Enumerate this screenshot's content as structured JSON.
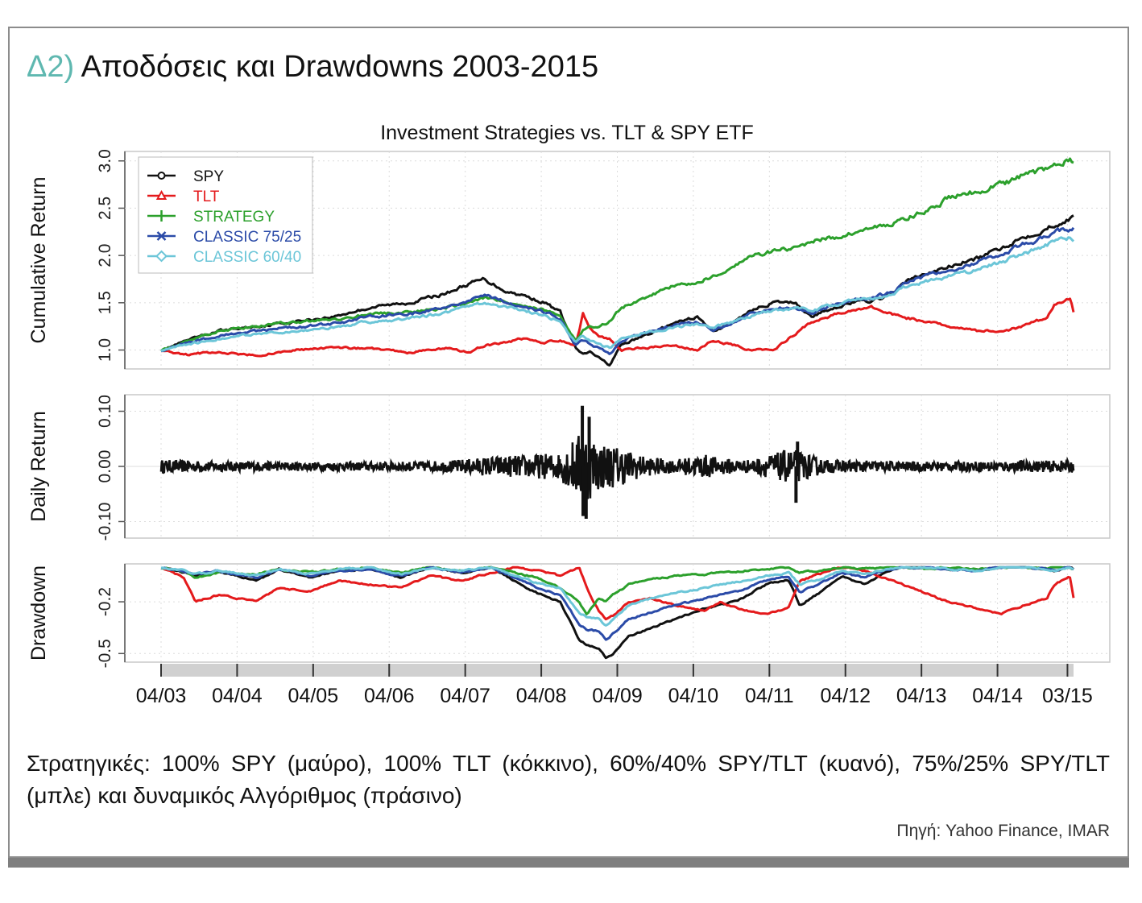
{
  "heading": {
    "number": "Δ2)",
    "text": "Αποδόσεις και Drawdowns 2003-2015"
  },
  "caption": "Στρατηγικές: 100% SPY (μαύρο), 100% TLT (κόκκινο), 60%/40% SPY/TLT (κυανό), 75%/25% SPY/TLT (μπλε) και δυναμικός Αλγόριθμος (πράσινο)",
  "source": "Πηγή: Yahoo Finance, IMAR",
  "chart_data": {
    "type": "line",
    "title": "Investment Strategies vs. TLT & SPY ETF",
    "x_tick_labels": [
      "04/03",
      "04/04",
      "04/05",
      "04/06",
      "04/07",
      "04/08",
      "04/09",
      "04/10",
      "04/11",
      "04/12",
      "04/13",
      "04/14",
      "03/15"
    ],
    "x_range": [
      2003.25,
      2015.25
    ],
    "legend": {
      "placement": "top-left",
      "entries": [
        {
          "name": "SPY",
          "color": "#111111",
          "marker": "circle"
        },
        {
          "name": "TLT",
          "color": "#e41a1c",
          "marker": "triangle"
        },
        {
          "name": "STRATEGY",
          "color": "#2ca02c",
          "marker": "plus"
        },
        {
          "name": "CLASSIC 75/25",
          "color": "#2b4ba8",
          "marker": "cross"
        },
        {
          "name": "CLASSIC 60/40",
          "color": "#6cc6d8",
          "marker": "diamond"
        }
      ]
    },
    "panels": [
      {
        "name": "cumulative",
        "ylabel": "Cumulative Return",
        "ylim": [
          0.8,
          3.1
        ],
        "yticks": [
          "1.0",
          "1.5",
          "2.0",
          "2.5",
          "3.0"
        ],
        "grid": true,
        "x": [
          2003.25,
          2003.6,
          2004.0,
          2004.5,
          2005.0,
          2005.5,
          2006.0,
          2006.5,
          2007.0,
          2007.3,
          2007.5,
          2007.8,
          2008.0,
          2008.3,
          2008.5,
          2008.7,
          2008.8,
          2008.9,
          2009.0,
          2009.15,
          2009.3,
          2009.6,
          2010.0,
          2010.3,
          2010.5,
          2010.8,
          2011.0,
          2011.3,
          2011.6,
          2011.8,
          2012.0,
          2012.3,
          2012.6,
          2012.9,
          2013.0,
          2013.3,
          2013.6,
          2014.0,
          2014.3,
          2014.6,
          2014.9,
          2015.0,
          2015.2,
          2015.25
        ],
        "series": [
          {
            "name": "SPY",
            "color": "#111111",
            "values": [
              1.0,
              1.1,
              1.2,
              1.25,
              1.3,
              1.35,
              1.45,
              1.5,
              1.6,
              1.7,
              1.75,
              1.62,
              1.58,
              1.5,
              1.4,
              1.02,
              0.95,
              0.98,
              0.92,
              0.84,
              1.05,
              1.15,
              1.28,
              1.35,
              1.2,
              1.3,
              1.42,
              1.5,
              1.5,
              1.35,
              1.42,
              1.5,
              1.52,
              1.6,
              1.72,
              1.8,
              1.88,
              1.97,
              2.08,
              2.2,
              2.28,
              2.33,
              2.38,
              2.4
            ]
          },
          {
            "name": "TLT",
            "color": "#e41a1c",
            "values": [
              1.0,
              0.95,
              0.98,
              0.94,
              1.0,
              1.02,
              1.02,
              0.97,
              1.02,
              0.97,
              1.05,
              1.08,
              1.12,
              1.08,
              1.1,
              1.05,
              1.38,
              1.22,
              1.15,
              1.12,
              1.0,
              1.02,
              1.05,
              1.0,
              1.1,
              1.05,
              1.0,
              1.0,
              1.18,
              1.3,
              1.35,
              1.42,
              1.45,
              1.38,
              1.35,
              1.3,
              1.25,
              1.2,
              1.2,
              1.25,
              1.35,
              1.48,
              1.55,
              1.4
            ]
          },
          {
            "name": "STRATEGY",
            "color": "#2ca02c",
            "values": [
              1.0,
              1.1,
              1.2,
              1.25,
              1.3,
              1.32,
              1.38,
              1.4,
              1.45,
              1.5,
              1.55,
              1.5,
              1.48,
              1.42,
              1.35,
              1.1,
              1.2,
              1.25,
              1.25,
              1.3,
              1.45,
              1.55,
              1.68,
              1.72,
              1.78,
              1.9,
              1.98,
              2.05,
              2.08,
              2.15,
              2.18,
              2.22,
              2.3,
              2.35,
              2.38,
              2.48,
              2.6,
              2.68,
              2.75,
              2.85,
              2.92,
              2.97,
              3.03,
              2.99
            ]
          },
          {
            "name": "CLASSIC 75/25",
            "color": "#2b4ba8",
            "values": [
              1.0,
              1.08,
              1.15,
              1.2,
              1.24,
              1.28,
              1.35,
              1.38,
              1.45,
              1.52,
              1.58,
              1.5,
              1.46,
              1.4,
              1.33,
              1.05,
              1.1,
              1.06,
              1.02,
              0.96,
              1.1,
              1.18,
              1.26,
              1.3,
              1.22,
              1.3,
              1.38,
              1.44,
              1.45,
              1.38,
              1.45,
              1.52,
              1.55,
              1.62,
              1.7,
              1.78,
              1.85,
              1.93,
              2.02,
              2.12,
              2.2,
              2.25,
              2.28,
              2.28
            ]
          },
          {
            "name": "CLASSIC 60/40",
            "color": "#6cc6d8",
            "values": [
              1.0,
              1.06,
              1.12,
              1.17,
              1.2,
              1.24,
              1.3,
              1.33,
              1.4,
              1.45,
              1.5,
              1.45,
              1.42,
              1.36,
              1.3,
              1.08,
              1.15,
              1.1,
              1.06,
              1.02,
              1.12,
              1.18,
              1.24,
              1.28,
              1.24,
              1.3,
              1.36,
              1.42,
              1.45,
              1.4,
              1.46,
              1.52,
              1.55,
              1.6,
              1.66,
              1.72,
              1.78,
              1.85,
              1.93,
              2.02,
              2.1,
              2.15,
              2.18,
              2.15
            ]
          }
        ]
      },
      {
        "name": "daily",
        "ylabel": "Daily Return",
        "ylim": [
          -0.13,
          0.13
        ],
        "yticks": [
          "-0.10",
          "0.00",
          "0.10"
        ],
        "grid": true,
        "series_name": "SPY",
        "color": "#111111",
        "volatility_x": [
          2003.25,
          2004.0,
          2005.0,
          2006.0,
          2007.0,
          2007.6,
          2008.0,
          2008.5,
          2008.75,
          2008.85,
          2009.0,
          2009.3,
          2009.6,
          2010.0,
          2010.4,
          2010.6,
          2011.0,
          2011.55,
          2011.8,
          2012.0,
          2013.0,
          2014.0,
          2015.25
        ],
        "volatility_y": [
          0.012,
          0.009,
          0.008,
          0.008,
          0.01,
          0.018,
          0.02,
          0.025,
          0.06,
          0.065,
          0.045,
          0.035,
          0.018,
          0.012,
          0.022,
          0.015,
          0.012,
          0.032,
          0.02,
          0.012,
          0.009,
          0.009,
          0.011
        ],
        "extremes": [
          {
            "x": 2008.79,
            "y": 0.11
          },
          {
            "x": 2008.84,
            "y": -0.095
          },
          {
            "x": 2008.8,
            "y": -0.09
          },
          {
            "x": 2008.88,
            "y": 0.09
          },
          {
            "x": 2011.6,
            "y": -0.066
          },
          {
            "x": 2011.62,
            "y": 0.045
          }
        ]
      },
      {
        "name": "drawdown",
        "ylabel": "Drawdown",
        "ylim": [
          -0.55,
          0.02
        ],
        "yticks": [
          "-0.5",
          "-0.2"
        ],
        "grid": true,
        "x": [
          2003.25,
          2003.55,
          2003.7,
          2004.0,
          2004.5,
          2004.8,
          2005.2,
          2005.6,
          2006.0,
          2006.4,
          2006.8,
          2007.2,
          2007.6,
          2007.9,
          2008.2,
          2008.5,
          2008.75,
          2008.85,
          2009.0,
          2009.1,
          2009.2,
          2009.4,
          2009.7,
          2010.0,
          2010.4,
          2010.6,
          2010.9,
          2011.2,
          2011.5,
          2011.65,
          2011.9,
          2012.2,
          2012.5,
          2012.8,
          2013.0,
          2013.3,
          2013.6,
          2014.0,
          2014.3,
          2014.6,
          2014.9,
          2015.0,
          2015.2,
          2015.25
        ],
        "series": [
          {
            "name": "SPY",
            "color": "#111111",
            "values": [
              0,
              -0.03,
              -0.05,
              -0.02,
              -0.08,
              -0.01,
              -0.06,
              -0.02,
              -0.01,
              -0.06,
              0,
              -0.03,
              0,
              -0.08,
              -0.15,
              -0.2,
              -0.42,
              -0.45,
              -0.47,
              -0.52,
              -0.5,
              -0.4,
              -0.35,
              -0.3,
              -0.24,
              -0.22,
              -0.18,
              -0.1,
              -0.07,
              -0.22,
              -0.15,
              -0.05,
              -0.1,
              -0.02,
              0,
              0,
              -0.01,
              -0.02,
              0,
              0,
              -0.01,
              -0.02,
              0,
              -0.01
            ]
          },
          {
            "name": "TLT",
            "color": "#e41a1c",
            "values": [
              0,
              -0.06,
              -0.2,
              -0.16,
              -0.2,
              -0.12,
              -0.14,
              -0.08,
              -0.1,
              -0.12,
              -0.05,
              -0.08,
              -0.03,
              0,
              -0.02,
              -0.05,
              0,
              -0.12,
              -0.25,
              -0.3,
              -0.28,
              -0.2,
              -0.18,
              -0.22,
              -0.25,
              -0.2,
              -0.25,
              -0.27,
              -0.24,
              -0.08,
              -0.04,
              0,
              -0.02,
              -0.07,
              -0.1,
              -0.15,
              -0.2,
              -0.24,
              -0.27,
              -0.22,
              -0.18,
              -0.1,
              -0.05,
              -0.18
            ]
          },
          {
            "name": "STRATEGY",
            "color": "#2ca02c",
            "values": [
              0,
              -0.02,
              -0.06,
              -0.03,
              -0.04,
              -0.01,
              -0.03,
              -0.01,
              0,
              -0.03,
              0,
              -0.02,
              0,
              -0.03,
              -0.06,
              -0.12,
              -0.2,
              -0.28,
              -0.18,
              -0.2,
              -0.16,
              -0.1,
              -0.07,
              -0.05,
              -0.04,
              -0.03,
              -0.02,
              -0.01,
              0,
              -0.03,
              -0.02,
              0,
              -0.01,
              0,
              0,
              -0.01,
              0,
              -0.01,
              0,
              0,
              -0.01,
              0,
              0,
              -0.01
            ]
          },
          {
            "name": "CLASSIC 75/25",
            "color": "#2b4ba8",
            "values": [
              0,
              -0.02,
              -0.04,
              -0.02,
              -0.06,
              -0.01,
              -0.05,
              -0.02,
              -0.01,
              -0.05,
              0,
              -0.03,
              0,
              -0.06,
              -0.12,
              -0.16,
              -0.33,
              -0.36,
              -0.37,
              -0.42,
              -0.38,
              -0.3,
              -0.26,
              -0.22,
              -0.18,
              -0.16,
              -0.13,
              -0.08,
              -0.05,
              -0.14,
              -0.1,
              -0.03,
              -0.06,
              -0.01,
              0,
              0,
              -0.01,
              -0.02,
              0,
              0,
              -0.01,
              -0.02,
              0,
              -0.01
            ]
          },
          {
            "name": "CLASSIC 60/40",
            "color": "#6cc6d8",
            "values": [
              0,
              -0.02,
              -0.04,
              -0.02,
              -0.05,
              -0.01,
              -0.04,
              -0.01,
              0,
              -0.04,
              0,
              -0.02,
              0,
              -0.05,
              -0.09,
              -0.12,
              -0.26,
              -0.29,
              -0.3,
              -0.34,
              -0.3,
              -0.22,
              -0.18,
              -0.15,
              -0.12,
              -0.1,
              -0.08,
              -0.05,
              -0.03,
              -0.1,
              -0.07,
              -0.02,
              -0.04,
              -0.01,
              0,
              0,
              -0.01,
              -0.02,
              0,
              0,
              -0.01,
              -0.02,
              0,
              -0.01
            ]
          }
        ]
      }
    ]
  }
}
